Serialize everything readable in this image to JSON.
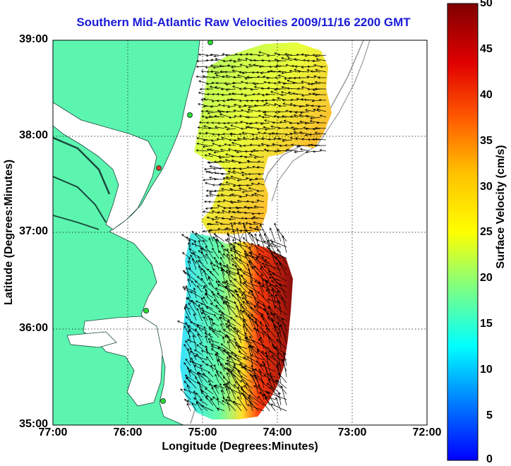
{
  "title": "Southern Mid-Atlantic Raw Velocities 2009/11/16 2200 GMT",
  "x_axis_label": "Longitude (Degrees:Minutes)",
  "y_axis_label": "Latitude (Degrees:Minutes)",
  "x_ticks": [
    "77:00",
    "76:00",
    "75:00",
    "74:00",
    "73:00",
    "72:00"
  ],
  "y_ticks": [
    "39:00",
    "38:00",
    "37:00",
    "36:00",
    "35:00"
  ],
  "colorbar": {
    "label": "Surface Velocity (cm/s)",
    "ticks": [
      "50",
      "45",
      "40",
      "35",
      "30",
      "25",
      "20",
      "15",
      "10",
      "5",
      "0"
    ],
    "min": 0,
    "max": 50
  },
  "colors": {
    "land": "#5cf5b0",
    "water": "#ffffff",
    "title": "#1b1bd8",
    "station": "#2fdc2f",
    "station_alert": "#e03a2a"
  },
  "map": {
    "lon_range": [
      -77,
      -72
    ],
    "lat_range": [
      35,
      39
    ],
    "grid": "dotted"
  }
}
